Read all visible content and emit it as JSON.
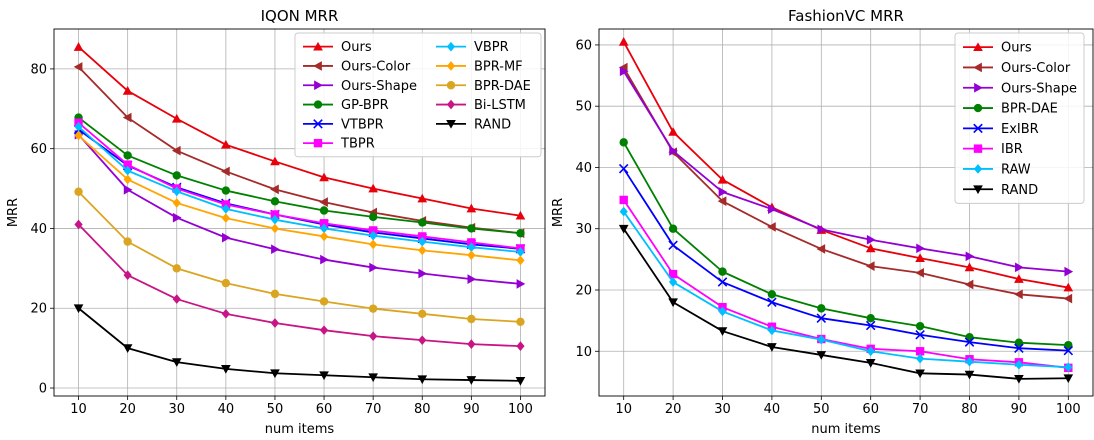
{
  "chart_data": [
    {
      "type": "line",
      "title": "IQON MRR",
      "xlabel": "num items",
      "ylabel": "MRR",
      "x": [
        10,
        20,
        30,
        40,
        50,
        60,
        70,
        80,
        90,
        100
      ],
      "xlim": [
        5,
        105
      ],
      "ylim": [
        -2,
        90
      ],
      "yticks": [
        0,
        20,
        40,
        60,
        80
      ],
      "grid": true,
      "legend": "top-right, 2 columns",
      "series": [
        {
          "name": "Ours",
          "color": "#e8000b",
          "marker": "triangle-up",
          "values": [
            85.5,
            74.5,
            67.5,
            61.0,
            56.8,
            52.8,
            50.0,
            47.5,
            45.0,
            43.2
          ]
        },
        {
          "name": "Ours-Color",
          "color": "#a52a2a",
          "marker": "triangle-left",
          "values": [
            80.5,
            67.8,
            59.5,
            54.3,
            49.8,
            46.6,
            44.0,
            41.9,
            40.2,
            38.8
          ]
        },
        {
          "name": "Ours-Shape",
          "color": "#9400d3",
          "marker": "triangle-right",
          "values": [
            63.5,
            49.7,
            42.7,
            37.7,
            34.8,
            32.2,
            30.2,
            28.7,
            27.3,
            26.1
          ]
        },
        {
          "name": "GP-BPR",
          "color": "#008000",
          "marker": "circle",
          "values": [
            67.8,
            58.3,
            53.3,
            49.5,
            46.8,
            44.5,
            42.9,
            41.5,
            40.0,
            38.8
          ]
        },
        {
          "name": "VTBPR",
          "color": "#0000ff",
          "marker": "x",
          "values": [
            64.8,
            55.8,
            50.3,
            46.3,
            43.5,
            41.0,
            39.0,
            37.5,
            36.0,
            34.9
          ]
        },
        {
          "name": "TBPR",
          "color": "#ff00ff",
          "marker": "square",
          "values": [
            66.5,
            56.0,
            50.0,
            46.0,
            43.5,
            41.3,
            39.5,
            38.0,
            36.5,
            35.0
          ]
        },
        {
          "name": "VBPR",
          "color": "#00bfff",
          "marker": "diamond",
          "values": [
            65.5,
            54.5,
            49.3,
            44.9,
            42.2,
            40.0,
            38.2,
            36.7,
            35.3,
            34.1
          ]
        },
        {
          "name": "BPR-MF",
          "color": "#ffa500",
          "marker": "diamond",
          "values": [
            63.3,
            52.3,
            46.4,
            42.6,
            40.0,
            38.0,
            36.0,
            34.5,
            33.3,
            32.0
          ]
        },
        {
          "name": "BPR-DAE",
          "color": "#daa520",
          "marker": "circle",
          "values": [
            49.2,
            36.7,
            30.0,
            26.3,
            23.6,
            21.7,
            19.9,
            18.6,
            17.3,
            16.6
          ]
        },
        {
          "name": "Bi-LSTM",
          "color": "#c71585",
          "marker": "diamond",
          "values": [
            41.0,
            28.3,
            22.3,
            18.6,
            16.3,
            14.5,
            13.0,
            12.0,
            11.0,
            10.5
          ]
        },
        {
          "name": "RAND",
          "color": "#000000",
          "marker": "triangle-down",
          "values": [
            20.0,
            10.0,
            6.5,
            4.8,
            3.7,
            3.2,
            2.7,
            2.2,
            2.0,
            1.8
          ]
        }
      ]
    },
    {
      "type": "line",
      "title": "FashionVC MRR",
      "xlabel": "num items",
      "ylabel": "MRR",
      "x": [
        10,
        20,
        30,
        40,
        50,
        60,
        70,
        80,
        90,
        100
      ],
      "xlim": [
        5,
        105
      ],
      "ylim": [
        2.7,
        62.6
      ],
      "yticks": [
        10,
        20,
        30,
        40,
        50,
        60
      ],
      "grid": true,
      "legend": "top-right",
      "series": [
        {
          "name": "Ours",
          "color": "#e8000b",
          "marker": "triangle-up",
          "values": [
            60.5,
            45.8,
            38.0,
            33.5,
            29.8,
            26.8,
            25.2,
            23.7,
            21.8,
            20.4
          ]
        },
        {
          "name": "Ours-Color",
          "color": "#a52a2a",
          "marker": "triangle-left",
          "values": [
            56.3,
            42.5,
            34.5,
            30.3,
            26.7,
            23.9,
            22.8,
            20.9,
            19.3,
            18.6
          ]
        },
        {
          "name": "Ours-Shape",
          "color": "#9400d3",
          "marker": "triangle-right",
          "values": [
            55.7,
            42.7,
            36.0,
            33.2,
            29.9,
            28.2,
            26.8,
            25.5,
            23.7,
            23.0
          ]
        },
        {
          "name": "BPR-DAE",
          "color": "#008000",
          "marker": "circle",
          "values": [
            44.1,
            30.0,
            23.0,
            19.3,
            17.0,
            15.4,
            14.1,
            12.3,
            11.4,
            11.0
          ]
        },
        {
          "name": "ExIBR",
          "color": "#0000ff",
          "marker": "x",
          "values": [
            39.8,
            27.3,
            21.3,
            18.0,
            15.4,
            14.2,
            12.7,
            11.5,
            10.5,
            10.1
          ]
        },
        {
          "name": "IBR",
          "color": "#ff00ff",
          "marker": "square",
          "values": [
            34.7,
            22.6,
            17.2,
            14.0,
            12.0,
            10.4,
            10.0,
            8.7,
            8.2,
            7.3
          ]
        },
        {
          "name": "RAW",
          "color": "#00bfff",
          "marker": "diamond",
          "values": [
            32.8,
            21.3,
            16.5,
            13.4,
            11.9,
            10.0,
            8.8,
            8.3,
            7.8,
            7.4
          ]
        },
        {
          "name": "RAND",
          "color": "#000000",
          "marker": "triangle-down",
          "values": [
            30.0,
            18.0,
            13.3,
            10.7,
            9.4,
            8.1,
            6.4,
            6.2,
            5.5,
            5.6
          ]
        }
      ]
    }
  ]
}
